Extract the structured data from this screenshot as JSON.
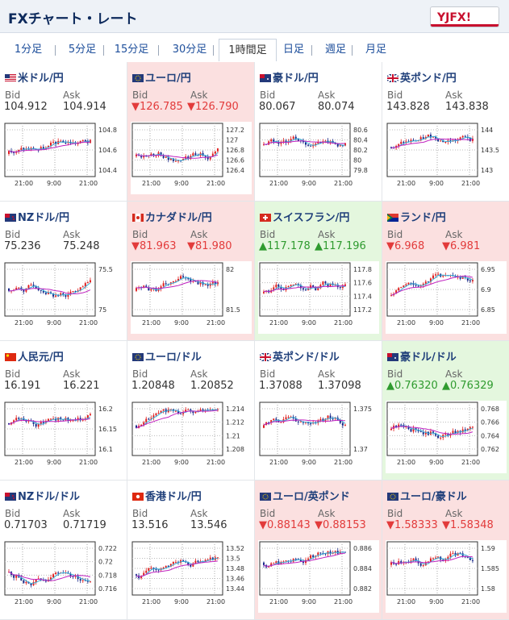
{
  "header": {
    "title": "FXチャート・レート",
    "logo_text": "YJFX!"
  },
  "tabs": [
    {
      "label": "1分足",
      "active": false
    },
    {
      "label": "5分足",
      "active": false
    },
    {
      "label": "15分足",
      "active": false
    },
    {
      "label": "30分足",
      "active": false
    },
    {
      "label": "1時間足",
      "active": true
    },
    {
      "label": "日足",
      "active": false
    },
    {
      "label": "週足",
      "active": false
    },
    {
      "label": "月足",
      "active": false
    }
  ],
  "labels": {
    "bid": "Bid",
    "ask": "Ask"
  },
  "colors": {
    "down_bg": "#fbe0e0",
    "up_bg": "#e4f7de",
    "down_text": "#e23b3b",
    "up_text": "#2f9b2f",
    "candle_up": "#e02020",
    "candle_down": "#1a2a8a",
    "ma_short": "#3ab0d8",
    "ma_long": "#c020c0"
  },
  "pairs": [
    {
      "name": "米ドル/円",
      "flag": "us-flag-icon",
      "bid": "104.912",
      "ask": "104.914",
      "dir": "none",
      "x_ticks": [
        "21:00",
        "9:00",
        "21:00"
      ],
      "y_ticks": [
        "104.8",
        "104.6",
        "104.4"
      ]
    },
    {
      "name": "ユーロ/円",
      "flag": "eu-flag-icon",
      "bid": "▼126.785",
      "ask": "▼126.790",
      "dir": "down",
      "x_ticks": [
        "21:00",
        "9:00",
        "21:00"
      ],
      "y_ticks": [
        "127.2",
        "127",
        "126.8",
        "126.6",
        "126.4"
      ]
    },
    {
      "name": "豪ドル/円",
      "flag": "au-flag-icon",
      "bid": "80.067",
      "ask": "80.074",
      "dir": "none",
      "x_ticks": [
        "21:00",
        "9:00",
        "21:00"
      ],
      "y_ticks": [
        "80.6",
        "80.4",
        "80.2",
        "80",
        "79.8"
      ]
    },
    {
      "name": "英ポンド/円",
      "flag": "uk-flag-icon",
      "bid": "143.828",
      "ask": "143.838",
      "dir": "none",
      "x_ticks": [
        "21:00",
        "9:00",
        "21:00"
      ],
      "y_ticks": [
        "144",
        "143.5",
        "143"
      ]
    },
    {
      "name": "NZドル/円",
      "flag": "nz-flag-icon",
      "bid": "75.236",
      "ask": "75.248",
      "dir": "none",
      "x_ticks": [
        "21:00",
        "9:00",
        "21:00"
      ],
      "y_ticks": [
        "75.5",
        "75"
      ]
    },
    {
      "name": "カナダドル/円",
      "flag": "ca-flag-icon",
      "bid": "▼81.963",
      "ask": "▼81.980",
      "dir": "down",
      "x_ticks": [
        "21:00",
        "9:00",
        "21:00"
      ],
      "y_ticks": [
        "82",
        "81.5"
      ]
    },
    {
      "name": "スイスフラン/円",
      "flag": "ch-flag-icon",
      "bid": "▲117.178",
      "ask": "▲117.196",
      "dir": "up",
      "x_ticks": [
        "21:00",
        "9:00",
        "21:00"
      ],
      "y_ticks": [
        "117.8",
        "117.6",
        "117.4",
        "117.2"
      ]
    },
    {
      "name": "ランド/円",
      "flag": "za-flag-icon",
      "bid": "▼6.968",
      "ask": "▼6.981",
      "dir": "down",
      "x_ticks": [
        "21:00",
        "9:00",
        "21:00"
      ],
      "y_ticks": [
        "6.95",
        "6.9",
        "6.85"
      ]
    },
    {
      "name": "人民元/円",
      "flag": "cn-flag-icon",
      "bid": "16.191",
      "ask": "16.221",
      "dir": "none",
      "x_ticks": [
        "21:00",
        "9:00",
        "21:00"
      ],
      "y_ticks": [
        "16.2",
        "16.15",
        "16.1"
      ]
    },
    {
      "name": "ユーロ/ドル",
      "flag": "eu-flag-icon",
      "bid": "1.20848",
      "ask": "1.20852",
      "dir": "none",
      "x_ticks": [
        "21:00",
        "9:00",
        "21:00"
      ],
      "y_ticks": [
        "1.214",
        "1.212",
        "1.21",
        "1.208"
      ]
    },
    {
      "name": "英ポンド/ドル",
      "flag": "uk-flag-icon",
      "bid": "1.37088",
      "ask": "1.37098",
      "dir": "none",
      "x_ticks": [
        "21:00",
        "9:00",
        "21:00"
      ],
      "y_ticks": [
        "1.375",
        "1.37"
      ]
    },
    {
      "name": "豪ドル/ドル",
      "flag": "au-flag-icon",
      "bid": "▲0.76320",
      "ask": "▲0.76329",
      "dir": "up",
      "x_ticks": [
        "21:00",
        "9:00",
        "21:00"
      ],
      "y_ticks": [
        "0.768",
        "0.766",
        "0.764",
        "0.762"
      ]
    },
    {
      "name": "NZドル/ドル",
      "flag": "nz-flag-icon",
      "bid": "0.71703",
      "ask": "0.71719",
      "dir": "none",
      "x_ticks": [
        "21:00",
        "9:00",
        "21:00"
      ],
      "y_ticks": [
        "0.722",
        "0.72",
        "0.718",
        "0.716"
      ]
    },
    {
      "name": "香港ドル/円",
      "flag": "hk-flag-icon",
      "bid": "13.516",
      "ask": "13.546",
      "dir": "none",
      "x_ticks": [
        "21:00",
        "9:00",
        "21:00"
      ],
      "y_ticks": [
        "13.52",
        "13.5",
        "13.48",
        "13.46",
        "13.44"
      ]
    },
    {
      "name": "ユーロ/英ポンド",
      "flag": "eu-flag-icon",
      "bid": "▼0.88143",
      "ask": "▼0.88153",
      "dir": "down",
      "x_ticks": [
        "21:00",
        "9:00",
        "21:00"
      ],
      "y_ticks": [
        "0.886",
        "0.884",
        "0.882"
      ]
    },
    {
      "name": "ユーロ/豪ドル",
      "flag": "eu-flag-icon",
      "bid": "▼1.58333",
      "ask": "▼1.58348",
      "dir": "down",
      "x_ticks": [
        "21:00",
        "9:00",
        "21:00"
      ],
      "y_ticks": [
        "1.59",
        "1.585",
        "1.58"
      ]
    }
  ]
}
